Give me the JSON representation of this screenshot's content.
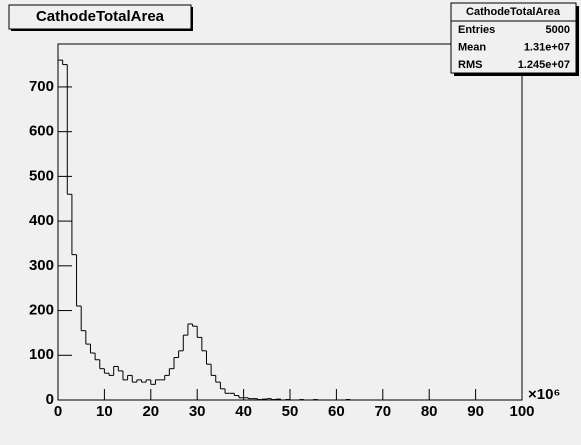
{
  "chart_data": {
    "type": "histogram",
    "title": "CathodeTotalArea",
    "stats": {
      "title": "CathodeTotalArea",
      "rows": [
        [
          "Entries",
          "5000"
        ],
        [
          "Mean",
          "1.31e+07"
        ],
        [
          "RMS",
          "1.245e+07"
        ]
      ]
    },
    "x_exponent_label": "×10⁶",
    "bins": [
      0,
      1,
      2,
      3,
      4,
      5,
      6,
      7,
      8,
      9,
      10,
      11,
      12,
      13,
      14,
      15,
      16,
      17,
      18,
      19,
      20,
      21,
      22,
      23,
      24,
      25,
      26,
      27,
      28,
      29,
      30,
      31,
      32,
      33,
      34,
      35,
      36,
      37,
      38,
      39,
      40,
      41,
      42,
      43,
      44,
      45,
      46,
      47,
      48,
      49,
      50,
      51,
      52,
      53,
      54,
      55,
      56,
      57,
      58,
      59,
      60,
      61,
      62,
      63,
      64,
      65,
      66,
      67,
      68,
      69,
      70,
      71,
      72,
      73,
      74,
      75,
      76,
      77,
      78,
      79,
      80,
      81,
      82,
      83,
      84,
      85,
      86,
      87,
      88,
      89,
      90,
      91,
      92,
      93,
      94,
      95,
      96,
      97,
      98,
      99,
      100
    ],
    "values": [
      760,
      750,
      460,
      325,
      210,
      155,
      125,
      105,
      90,
      70,
      60,
      55,
      75,
      65,
      45,
      55,
      40,
      45,
      40,
      45,
      35,
      45,
      45,
      55,
      70,
      95,
      110,
      145,
      170,
      165,
      140,
      110,
      80,
      55,
      40,
      25,
      15,
      15,
      10,
      5,
      5,
      3,
      3,
      1,
      2,
      3,
      1,
      2,
      0,
      1,
      0,
      0,
      1,
      0,
      0,
      1,
      0,
      0,
      0,
      0,
      0,
      0,
      1,
      0,
      0,
      0,
      0,
      0,
      0,
      0,
      0,
      0,
      0,
      0,
      0,
      0,
      0,
      0,
      0,
      0,
      0,
      0,
      0,
      0,
      0,
      0,
      0,
      0,
      0,
      0,
      0,
      0,
      0,
      0,
      0,
      0,
      0,
      0,
      0,
      0
    ],
    "color": "#000000",
    "xlim": [
      0,
      100
    ],
    "xticks": [
      0,
      10,
      20,
      30,
      40,
      50,
      60,
      70,
      80,
      90,
      100
    ],
    "ylim": [
      0,
      796
    ],
    "yticks": [
      0,
      100,
      200,
      300,
      400,
      500,
      600,
      700
    ]
  }
}
